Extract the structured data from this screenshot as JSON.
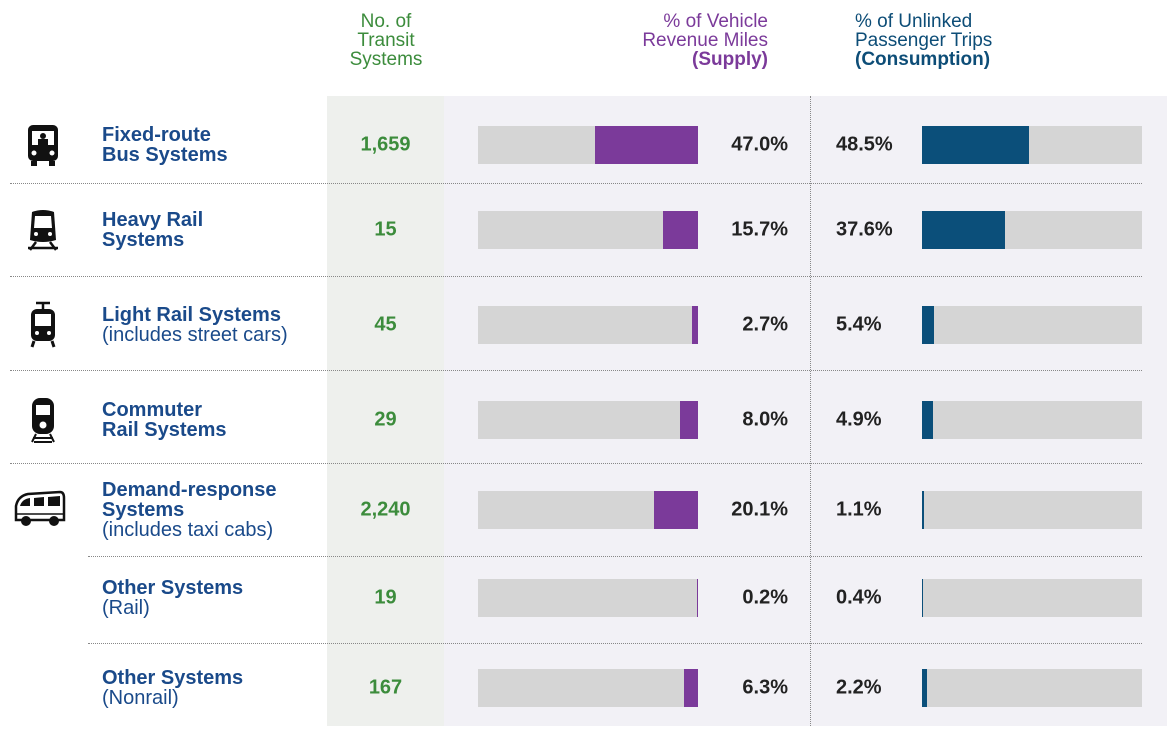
{
  "columns": {
    "systems": "No. of Transit Systems",
    "supply": {
      "label": "% of Vehicle Revenue Miles",
      "emphasis": "(Supply)",
      "color": "#7b3a9a",
      "xlim": [
        0,
        100
      ]
    },
    "consumption": {
      "label": "% of Unlinked Passenger Trips",
      "emphasis": "(Consumption)",
      "color": "#0b4f7a",
      "xlim": [
        0,
        100
      ]
    }
  },
  "rows": [
    {
      "name": [
        "Fixed-route",
        "Bus Systems"
      ],
      "icon": "bus",
      "systems": "1,659",
      "supply": 47.0,
      "supply_label": "47.0%",
      "consumption": 48.5,
      "consumption_label": "48.5%"
    },
    {
      "name": [
        "Heavy Rail",
        "Systems"
      ],
      "icon": "heavy",
      "systems": "15",
      "supply": 15.7,
      "supply_label": "15.7%",
      "consumption": 37.6,
      "consumption_label": "37.6%"
    },
    {
      "name": [
        "Light Rail Systems"
      ],
      "note": "(includes street cars)",
      "icon": "light",
      "systems": "45",
      "supply": 2.7,
      "supply_label": "2.7%",
      "consumption": 5.4,
      "consumption_label": "5.4%"
    },
    {
      "name": [
        "Commuter",
        "Rail Systems"
      ],
      "icon": "commuter",
      "systems": "29",
      "supply": 8.0,
      "supply_label": "8.0%",
      "consumption": 4.9,
      "consumption_label": "4.9%"
    },
    {
      "name": [
        "Demand-response",
        "Systems"
      ],
      "note": "(includes taxi cabs)",
      "icon": "van",
      "systems": "2,240",
      "supply": 20.1,
      "supply_label": "20.1%",
      "consumption": 1.1,
      "consumption_label": "1.1%"
    },
    {
      "name": [
        "Other Systems"
      ],
      "note": "(Rail)",
      "systems": "19",
      "supply": 0.2,
      "supply_label": "0.2%",
      "consumption": 0.4,
      "consumption_label": "0.4%"
    },
    {
      "name": [
        "Other Systems"
      ],
      "note": "(Nonrail)",
      "systems": "167",
      "supply": 6.3,
      "supply_label": "6.3%",
      "consumption": 2.2,
      "consumption_label": "2.2%"
    }
  ]
}
